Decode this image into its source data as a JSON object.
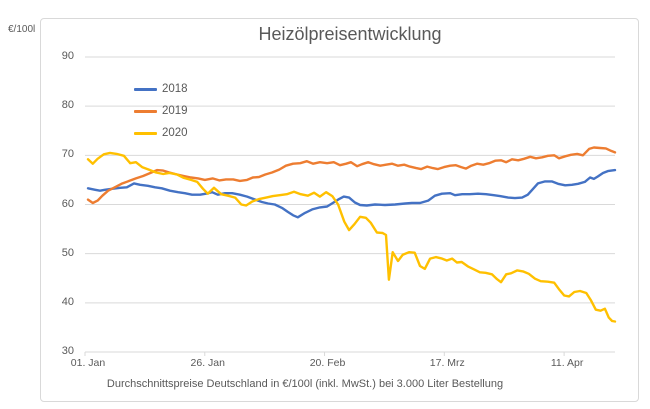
{
  "chart_data": {
    "type": "line",
    "title": "Heizölpreisentwicklung",
    "ylabel": "€/100l",
    "caption": "Durchschnittspreise Deutschland in €/100l (inkl. MwSt.) bei 3.000 Liter Bestellung",
    "ylim": [
      30,
      90
    ],
    "y_ticks": [
      90,
      80,
      70,
      60,
      50,
      40,
      30
    ],
    "x_ticks": [
      {
        "day": 0,
        "label": "01. Jan"
      },
      {
        "day": 25,
        "label": "26. Jan"
      },
      {
        "day": 50,
        "label": "20. Feb"
      },
      {
        "day": 75,
        "label": "17. Mrz"
      },
      {
        "day": 100,
        "label": "11. Apr"
      }
    ],
    "x_range_days": [
      0,
      110
    ],
    "grid": "horizontal-only",
    "legend_position": "top-left-inside",
    "colors": {
      "grid": "#d9d9d9",
      "axis": "#d9d9d9",
      "text": "#595959",
      "border": "#d9d9d9"
    },
    "series": [
      {
        "name": "2018",
        "color": "#4472C4",
        "points": [
          [
            0,
            63.3
          ],
          [
            1.5,
            63.0
          ],
          [
            2.5,
            62.8
          ],
          [
            3.5,
            63.0
          ],
          [
            5,
            63.2
          ],
          [
            6.7,
            63.4
          ],
          [
            8.1,
            63.5
          ],
          [
            9.6,
            64.3
          ],
          [
            10.9,
            64.0
          ],
          [
            12.5,
            63.8
          ],
          [
            14,
            63.5
          ],
          [
            15.4,
            63.3
          ],
          [
            17.1,
            62.8
          ],
          [
            18.8,
            62.5
          ],
          [
            20.2,
            62.3
          ],
          [
            21.7,
            62.0
          ],
          [
            23.4,
            62.0
          ],
          [
            24.6,
            62.2
          ],
          [
            25.9,
            62.5
          ],
          [
            27.1,
            62.0
          ],
          [
            28.6,
            62.3
          ],
          [
            30.1,
            62.3
          ],
          [
            31.7,
            62.0
          ],
          [
            33.2,
            61.6
          ],
          [
            34.9,
            61.0
          ],
          [
            36.3,
            60.5
          ],
          [
            37.6,
            60.2
          ],
          [
            39.0,
            60.0
          ],
          [
            40.5,
            59.3
          ],
          [
            41.7,
            58.5
          ],
          [
            42.8,
            57.8
          ],
          [
            43.8,
            57.4
          ],
          [
            45.3,
            58.3
          ],
          [
            46.8,
            59.0
          ],
          [
            48.4,
            59.4
          ],
          [
            49.9,
            59.6
          ],
          [
            51.1,
            60.3
          ],
          [
            52.2,
            61.0
          ],
          [
            53.4,
            61.6
          ],
          [
            54.5,
            61.4
          ],
          [
            55.7,
            60.4
          ],
          [
            56.8,
            59.9
          ],
          [
            58.2,
            59.8
          ],
          [
            59.9,
            60.0
          ],
          [
            62.0,
            59.9
          ],
          [
            64.1,
            60.0
          ],
          [
            66.2,
            60.2
          ],
          [
            67.6,
            60.3
          ],
          [
            69.3,
            60.3
          ],
          [
            71.0,
            60.8
          ],
          [
            72.4,
            61.8
          ],
          [
            73.9,
            62.2
          ],
          [
            75.6,
            62.3
          ],
          [
            76.6,
            61.9
          ],
          [
            78.1,
            62.1
          ],
          [
            79.7,
            62.1
          ],
          [
            81.4,
            62.2
          ],
          [
            83.1,
            62.1
          ],
          [
            84.7,
            61.9
          ],
          [
            86.0,
            61.7
          ],
          [
            87.7,
            61.4
          ],
          [
            89.1,
            61.3
          ],
          [
            90.6,
            61.4
          ],
          [
            91.8,
            62.0
          ],
          [
            92.9,
            63.2
          ],
          [
            93.9,
            64.3
          ],
          [
            95.4,
            64.7
          ],
          [
            96.8,
            64.7
          ],
          [
            98.1,
            64.2
          ],
          [
            99.6,
            63.9
          ],
          [
            101.0,
            64.0
          ],
          [
            102.3,
            64.2
          ],
          [
            103.7,
            64.6
          ],
          [
            104.8,
            65.5
          ],
          [
            105.6,
            65.2
          ],
          [
            106.4,
            65.7
          ],
          [
            107.5,
            66.4
          ],
          [
            108.5,
            66.8
          ],
          [
            110,
            67.0
          ]
        ]
      },
      {
        "name": "2019",
        "color": "#ED7D31",
        "points": [
          [
            0,
            61.0
          ],
          [
            1,
            60.3
          ],
          [
            2,
            60.8
          ],
          [
            3,
            61.8
          ],
          [
            4.2,
            62.8
          ],
          [
            5.6,
            63.5
          ],
          [
            7,
            64.2
          ],
          [
            8.6,
            64.8
          ],
          [
            10,
            65.3
          ],
          [
            11.5,
            65.8
          ],
          [
            13,
            66.4
          ],
          [
            14.4,
            67.0
          ],
          [
            15.7,
            66.9
          ],
          [
            17,
            66.5
          ],
          [
            18.6,
            66.1
          ],
          [
            20,
            65.8
          ],
          [
            21.5,
            65.5
          ],
          [
            23,
            65.3
          ],
          [
            24.4,
            65.0
          ],
          [
            26,
            65.3
          ],
          [
            27.4,
            64.9
          ],
          [
            28.8,
            65.1
          ],
          [
            30.3,
            65.1
          ],
          [
            31.7,
            64.8
          ],
          [
            33.2,
            65.0
          ],
          [
            34.4,
            65.5
          ],
          [
            35.7,
            65.6
          ],
          [
            37,
            66.1
          ],
          [
            38.4,
            66.5
          ],
          [
            39.9,
            67.1
          ],
          [
            41.3,
            67.9
          ],
          [
            42.8,
            68.3
          ],
          [
            44.3,
            68.4
          ],
          [
            45.7,
            68.8
          ],
          [
            47,
            68.3
          ],
          [
            48.4,
            68.6
          ],
          [
            49.9,
            68.4
          ],
          [
            51.3,
            68.6
          ],
          [
            52.6,
            68.0
          ],
          [
            53.9,
            68.3
          ],
          [
            54.9,
            68.6
          ],
          [
            56.2,
            67.8
          ],
          [
            57.2,
            68.2
          ],
          [
            58.5,
            68.6
          ],
          [
            59.7,
            68.2
          ],
          [
            61,
            67.9
          ],
          [
            62.2,
            68.1
          ],
          [
            63.5,
            68.3
          ],
          [
            64.7,
            67.9
          ],
          [
            66,
            68.1
          ],
          [
            67.2,
            67.7
          ],
          [
            68.5,
            67.4
          ],
          [
            69.5,
            67.2
          ],
          [
            70.8,
            67.7
          ],
          [
            72,
            67.4
          ],
          [
            73,
            67.2
          ],
          [
            74.3,
            67.6
          ],
          [
            75.6,
            67.9
          ],
          [
            76.8,
            68.0
          ],
          [
            77.9,
            67.6
          ],
          [
            78.9,
            67.3
          ],
          [
            80,
            67.9
          ],
          [
            81.2,
            68.3
          ],
          [
            82.5,
            68.1
          ],
          [
            83.7,
            68.4
          ],
          [
            85,
            68.9
          ],
          [
            86.2,
            69.0
          ],
          [
            87.3,
            68.6
          ],
          [
            88.5,
            69.2
          ],
          [
            89.8,
            69.0
          ],
          [
            91,
            69.3
          ],
          [
            92.3,
            69.7
          ],
          [
            93.5,
            69.4
          ],
          [
            94.8,
            69.6
          ],
          [
            96,
            69.9
          ],
          [
            97.3,
            70.0
          ],
          [
            98.3,
            69.4
          ],
          [
            99.6,
            69.8
          ],
          [
            100.8,
            70.1
          ],
          [
            102.1,
            70.3
          ],
          [
            103.3,
            70.0
          ],
          [
            104.6,
            71.3
          ],
          [
            105.6,
            71.6
          ],
          [
            106.9,
            71.5
          ],
          [
            108.1,
            71.4
          ],
          [
            109.2,
            70.9
          ],
          [
            110,
            70.6
          ]
        ]
      },
      {
        "name": "2020",
        "color": "#FFC000",
        "points": [
          [
            0,
            69.2
          ],
          [
            1,
            68.3
          ],
          [
            2,
            69.3
          ],
          [
            3.3,
            70.2
          ],
          [
            4.6,
            70.5
          ],
          [
            6,
            70.3
          ],
          [
            7.5,
            69.9
          ],
          [
            8.8,
            68.4
          ],
          [
            10,
            68.6
          ],
          [
            11.3,
            67.6
          ],
          [
            12.7,
            67.1
          ],
          [
            14.2,
            66.5
          ],
          [
            15.7,
            66.2
          ],
          [
            17,
            66.4
          ],
          [
            18.6,
            66.1
          ],
          [
            20,
            65.4
          ],
          [
            21.5,
            65.0
          ],
          [
            22.8,
            64.6
          ],
          [
            24,
            63.2
          ],
          [
            25,
            62.2
          ],
          [
            26.3,
            63.4
          ],
          [
            27.8,
            62.1
          ],
          [
            29.2,
            61.8
          ],
          [
            30.7,
            61.4
          ],
          [
            32,
            60.0
          ],
          [
            33,
            59.8
          ],
          [
            34.3,
            60.6
          ],
          [
            35.7,
            61.1
          ],
          [
            37.2,
            61.4
          ],
          [
            38.6,
            61.7
          ],
          [
            40,
            61.9
          ],
          [
            41.5,
            62.1
          ],
          [
            43,
            62.6
          ],
          [
            44.4,
            62.1
          ],
          [
            45.9,
            61.8
          ],
          [
            47.2,
            62.4
          ],
          [
            48.4,
            61.6
          ],
          [
            49.7,
            62.5
          ],
          [
            51,
            61.7
          ],
          [
            52.2,
            60.0
          ],
          [
            53.5,
            56.5
          ],
          [
            54.5,
            54.8
          ],
          [
            55.6,
            56.0
          ],
          [
            56.8,
            57.5
          ],
          [
            58,
            57.3
          ],
          [
            59,
            56.3
          ],
          [
            60.3,
            54.3
          ],
          [
            61.5,
            54.2
          ],
          [
            62.2,
            53.8
          ],
          [
            62.8,
            44.7
          ],
          [
            63.6,
            50.3
          ],
          [
            64.7,
            48.5
          ],
          [
            65.7,
            49.8
          ],
          [
            67,
            50.3
          ],
          [
            68.2,
            50.2
          ],
          [
            69.3,
            47.5
          ],
          [
            70.3,
            46.9
          ],
          [
            71.4,
            49.0
          ],
          [
            72.6,
            49.3
          ],
          [
            73.9,
            49.0
          ],
          [
            74.9,
            48.6
          ],
          [
            76,
            49.0
          ],
          [
            77,
            48.2
          ],
          [
            78,
            48.3
          ],
          [
            79.3,
            47.4
          ],
          [
            80.6,
            46.8
          ],
          [
            81.8,
            46.2
          ],
          [
            83,
            46.1
          ],
          [
            84.3,
            45.8
          ],
          [
            85.4,
            44.8
          ],
          [
            86.2,
            44.2
          ],
          [
            87.3,
            45.8
          ],
          [
            88.3,
            46.0
          ],
          [
            89.6,
            46.6
          ],
          [
            90.8,
            46.4
          ],
          [
            92,
            45.9
          ],
          [
            93.3,
            44.9
          ],
          [
            94.5,
            44.4
          ],
          [
            96,
            44.3
          ],
          [
            97.3,
            44.1
          ],
          [
            98.3,
            42.8
          ],
          [
            99.4,
            41.5
          ],
          [
            100.4,
            41.3
          ],
          [
            101.5,
            42.2
          ],
          [
            102.7,
            42.4
          ],
          [
            104,
            42.0
          ],
          [
            105,
            40.5
          ],
          [
            106,
            38.6
          ],
          [
            107,
            38.4
          ],
          [
            107.9,
            38.8
          ],
          [
            108.7,
            37.0
          ],
          [
            109.4,
            36.3
          ],
          [
            110,
            36.2
          ]
        ]
      }
    ]
  }
}
